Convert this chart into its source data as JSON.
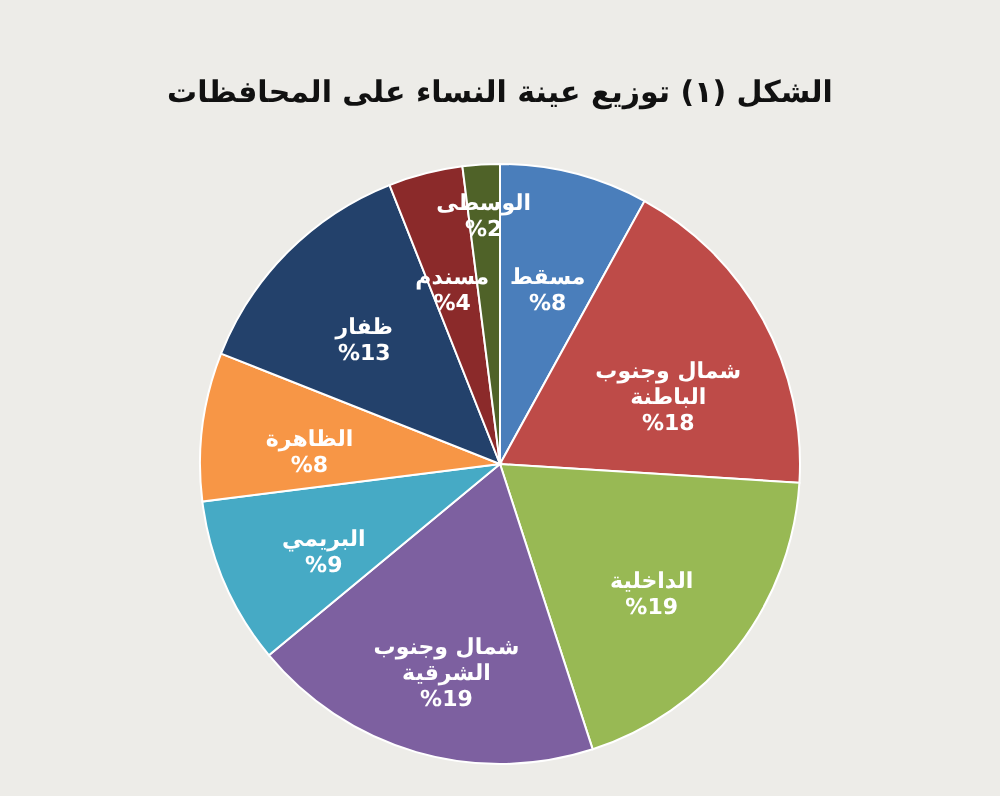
{
  "chart_data": {
    "type": "pie",
    "title": "الشكل (١) توزيع عينة النساء على المحافظات",
    "categories": [
      "مسقط",
      "شمال وجنوب الباطنة",
      "الداخلية",
      "شمال وجنوب الشرقية",
      "البريمي",
      "الظاهرة",
      "ظفار",
      "مسندم",
      "الوسطى"
    ],
    "values": [
      8,
      18,
      19,
      19,
      9,
      8,
      13,
      4,
      2
    ],
    "value_labels": [
      "%8",
      "%18",
      "%19",
      "%19",
      "%9",
      "%8",
      "%13",
      "%4",
      "%2"
    ],
    "colors": [
      "#4a7ebb",
      "#be4b48",
      "#98b954",
      "#7d60a0",
      "#46aac5",
      "#f79646",
      "#23416b",
      "#8b2a2a",
      "#4f6228"
    ],
    "legend": false
  }
}
